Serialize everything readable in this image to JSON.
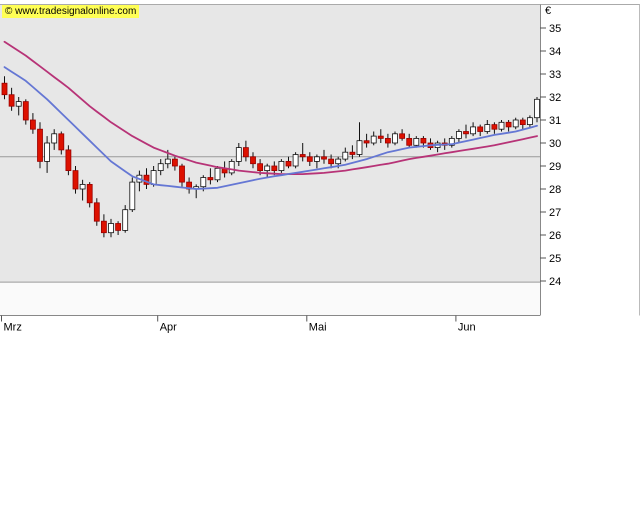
{
  "watermark": {
    "text": "© www.tradesignalonline.com",
    "bg": "#ffff55"
  },
  "chart_data": {
    "type": "candlestick",
    "title": "",
    "currency_label": "€",
    "y_axis": {
      "position": "right",
      "min": 24,
      "max": 35,
      "tick_step": 1,
      "tick_labels": [
        "35",
        "34",
        "33",
        "32",
        "31",
        "30",
        "29",
        "28",
        "27",
        "26",
        "25",
        "24"
      ]
    },
    "x_axis": {
      "labels": [
        "Mrz",
        "Apr",
        "Mai",
        "Jun"
      ],
      "tick_indices": [
        0,
        22,
        43,
        64
      ]
    },
    "ylim": [
      24,
      35
    ],
    "grid": "off",
    "level_lines": [
      29.4,
      23.95
    ],
    "colors": {
      "panel": "#e7e7e7",
      "panel_low": "#fafafa",
      "grid": "#9a9a9a",
      "wick": "#111111",
      "up": "#ffffff",
      "down": "#dd1100",
      "down_border": "#990000",
      "ma_fast": "#6577d4",
      "ma_slow": "#b73377"
    },
    "candles": [
      [
        32.6,
        32.9,
        31.9,
        32.1
      ],
      [
        32.1,
        32.4,
        31.4,
        31.6
      ],
      [
        31.6,
        32.0,
        31.2,
        31.8
      ],
      [
        31.8,
        31.9,
        30.8,
        31.0
      ],
      [
        31.0,
        31.3,
        30.4,
        30.6
      ],
      [
        30.6,
        30.9,
        28.9,
        29.2
      ],
      [
        29.2,
        30.3,
        28.7,
        30.0
      ],
      [
        30.0,
        30.6,
        29.7,
        30.4
      ],
      [
        30.4,
        30.5,
        29.5,
        29.7
      ],
      [
        29.7,
        29.9,
        28.6,
        28.8
      ],
      [
        28.8,
        29.0,
        27.8,
        28.0
      ],
      [
        28.0,
        28.4,
        27.5,
        28.2
      ],
      [
        28.2,
        28.3,
        27.2,
        27.4
      ],
      [
        27.4,
        27.6,
        26.4,
        26.6
      ],
      [
        26.6,
        26.9,
        25.9,
        26.1
      ],
      [
        26.1,
        26.7,
        25.9,
        26.5
      ],
      [
        26.5,
        26.6,
        26.0,
        26.2
      ],
      [
        26.2,
        27.3,
        26.1,
        27.1
      ],
      [
        27.1,
        28.5,
        27.0,
        28.3
      ],
      [
        28.3,
        28.8,
        27.9,
        28.6
      ],
      [
        28.6,
        28.9,
        28.0,
        28.2
      ],
      [
        28.2,
        29.0,
        28.1,
        28.8
      ],
      [
        28.8,
        29.3,
        28.6,
        29.1
      ],
      [
        29.1,
        29.7,
        28.9,
        29.3
      ],
      [
        29.3,
        29.4,
        28.8,
        29.0
      ],
      [
        29.0,
        29.1,
        28.1,
        28.3
      ],
      [
        28.3,
        28.5,
        27.8,
        28.0
      ],
      [
        28.0,
        28.2,
        27.6,
        28.1
      ],
      [
        28.1,
        28.6,
        27.9,
        28.5
      ],
      [
        28.5,
        28.9,
        28.2,
        28.4
      ],
      [
        28.4,
        29.0,
        28.3,
        28.9
      ],
      [
        28.9,
        29.2,
        28.5,
        28.7
      ],
      [
        28.7,
        29.3,
        28.6,
        29.2
      ],
      [
        29.2,
        30.0,
        29.0,
        29.8
      ],
      [
        29.8,
        30.1,
        29.2,
        29.4
      ],
      [
        29.4,
        29.6,
        28.9,
        29.1
      ],
      [
        29.1,
        29.3,
        28.6,
        28.8
      ],
      [
        28.8,
        29.1,
        28.5,
        29.0
      ],
      [
        29.0,
        29.2,
        28.6,
        28.8
      ],
      [
        28.8,
        29.3,
        28.7,
        29.2
      ],
      [
        29.2,
        29.4,
        28.9,
        29.0
      ],
      [
        29.0,
        29.6,
        28.9,
        29.5
      ],
      [
        29.5,
        30.0,
        29.2,
        29.4
      ],
      [
        29.4,
        29.6,
        29.0,
        29.2
      ],
      [
        29.2,
        29.5,
        28.9,
        29.4
      ],
      [
        29.4,
        29.7,
        29.1,
        29.3
      ],
      [
        29.3,
        29.5,
        28.9,
        29.1
      ],
      [
        29.1,
        29.4,
        28.9,
        29.3
      ],
      [
        29.3,
        29.8,
        29.2,
        29.6
      ],
      [
        29.6,
        29.9,
        29.3,
        29.5
      ],
      [
        29.5,
        30.9,
        29.4,
        30.1
      ],
      [
        30.1,
        30.4,
        29.8,
        30.0
      ],
      [
        30.0,
        30.5,
        29.9,
        30.3
      ],
      [
        30.3,
        30.6,
        30.0,
        30.2
      ],
      [
        30.2,
        30.4,
        29.8,
        30.0
      ],
      [
        30.0,
        30.5,
        29.9,
        30.4
      ],
      [
        30.4,
        30.6,
        30.1,
        30.2
      ],
      [
        30.2,
        30.4,
        29.8,
        29.9
      ],
      [
        29.9,
        30.3,
        29.8,
        30.2
      ],
      [
        30.2,
        30.3,
        29.8,
        30.0
      ],
      [
        30.0,
        30.2,
        29.7,
        29.8
      ],
      [
        29.8,
        30.1,
        29.6,
        30.0
      ],
      [
        30.0,
        30.2,
        29.7,
        29.9
      ],
      [
        29.9,
        30.3,
        29.8,
        30.2
      ],
      [
        30.2,
        30.6,
        30.0,
        30.5
      ],
      [
        30.5,
        30.8,
        30.2,
        30.4
      ],
      [
        30.4,
        30.9,
        30.3,
        30.7
      ],
      [
        30.7,
        30.8,
        30.3,
        30.5
      ],
      [
        30.5,
        31.0,
        30.4,
        30.8
      ],
      [
        30.8,
        30.9,
        30.4,
        30.6
      ],
      [
        30.6,
        31.0,
        30.5,
        30.9
      ],
      [
        30.9,
        31.0,
        30.5,
        30.7
      ],
      [
        30.7,
        31.1,
        30.6,
        31.0
      ],
      [
        31.0,
        31.1,
        30.6,
        30.8
      ],
      [
        30.8,
        31.2,
        30.7,
        31.1
      ],
      [
        31.1,
        32.0,
        30.9,
        31.9
      ]
    ],
    "ma_fast": {
      "name": "ema-fast-line",
      "color": "#6577d4",
      "points": [
        [
          0,
          33.3
        ],
        [
          3,
          32.7
        ],
        [
          6,
          31.9
        ],
        [
          9,
          31.0
        ],
        [
          12,
          30.1
        ],
        [
          15,
          29.2
        ],
        [
          18,
          28.55
        ],
        [
          21,
          28.2
        ],
        [
          24,
          28.1
        ],
        [
          27,
          28.0
        ],
        [
          30,
          28.05
        ],
        [
          33,
          28.25
        ],
        [
          36,
          28.45
        ],
        [
          39,
          28.6
        ],
        [
          42,
          28.75
        ],
        [
          45,
          28.9
        ],
        [
          48,
          29.05
        ],
        [
          51,
          29.3
        ],
        [
          54,
          29.6
        ],
        [
          57,
          29.8
        ],
        [
          60,
          29.9
        ],
        [
          63,
          29.95
        ],
        [
          66,
          30.15
        ],
        [
          69,
          30.35
        ],
        [
          72,
          30.5
        ],
        [
          75,
          30.75
        ]
      ]
    },
    "ma_slow": {
      "name": "ema-slow-line",
      "color": "#b73377",
      "points": [
        [
          0,
          34.4
        ],
        [
          3,
          33.8
        ],
        [
          6,
          33.1
        ],
        [
          9,
          32.4
        ],
        [
          12,
          31.6
        ],
        [
          15,
          30.9
        ],
        [
          18,
          30.3
        ],
        [
          21,
          29.8
        ],
        [
          24,
          29.45
        ],
        [
          27,
          29.15
        ],
        [
          30,
          28.95
        ],
        [
          33,
          28.8
        ],
        [
          36,
          28.7
        ],
        [
          39,
          28.65
        ],
        [
          42,
          28.65
        ],
        [
          45,
          28.7
        ],
        [
          48,
          28.8
        ],
        [
          51,
          28.95
        ],
        [
          54,
          29.1
        ],
        [
          57,
          29.3
        ],
        [
          60,
          29.45
        ],
        [
          63,
          29.6
        ],
        [
          66,
          29.75
        ],
        [
          69,
          29.9
        ],
        [
          72,
          30.1
        ],
        [
          75,
          30.3
        ]
      ]
    }
  }
}
